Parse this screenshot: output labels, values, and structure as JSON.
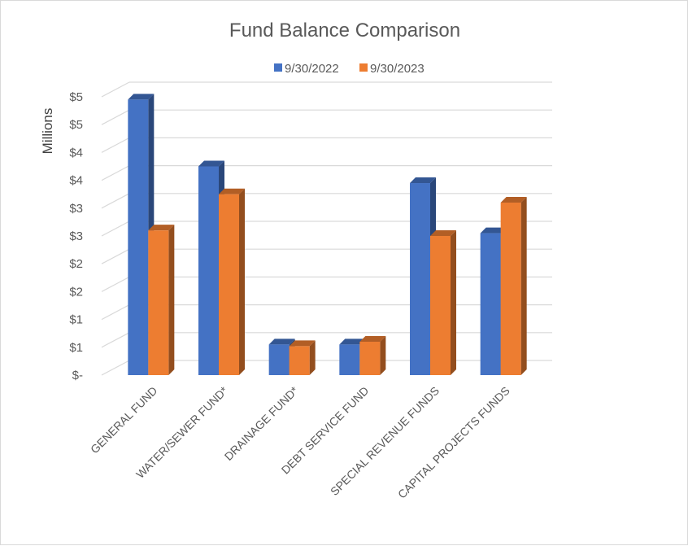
{
  "chart_data": {
    "type": "bar",
    "title": "Fund Balance Comparison",
    "ylabel": "Millions",
    "xlabel": "",
    "categories": [
      "GENERAL FUND",
      "WATER/SEWER FUND*",
      "DRAINAGE FUND*",
      "DEBT SERVICE FUND",
      "SPECIAL REVENUE FUNDS",
      "CAPITAL PROJECTS FUNDS"
    ],
    "series": [
      {
        "name": "9/30/2022",
        "color": "#4472C4",
        "values": [
          4.95,
          3.75,
          0.55,
          0.55,
          3.45,
          2.55
        ]
      },
      {
        "name": "9/30/2023",
        "color": "#ED7D31",
        "values": [
          2.6,
          3.25,
          0.52,
          0.6,
          2.5,
          3.1
        ]
      }
    ],
    "ylim": [
      0,
      5
    ],
    "y_ticks": [
      "$-",
      "$1",
      "$1",
      "$2",
      "$2",
      "$3",
      "$3",
      "$4",
      "$4",
      "$5",
      "$5"
    ],
    "grid": true,
    "legend_position": "top-center",
    "style": "3d-clustered-column"
  }
}
